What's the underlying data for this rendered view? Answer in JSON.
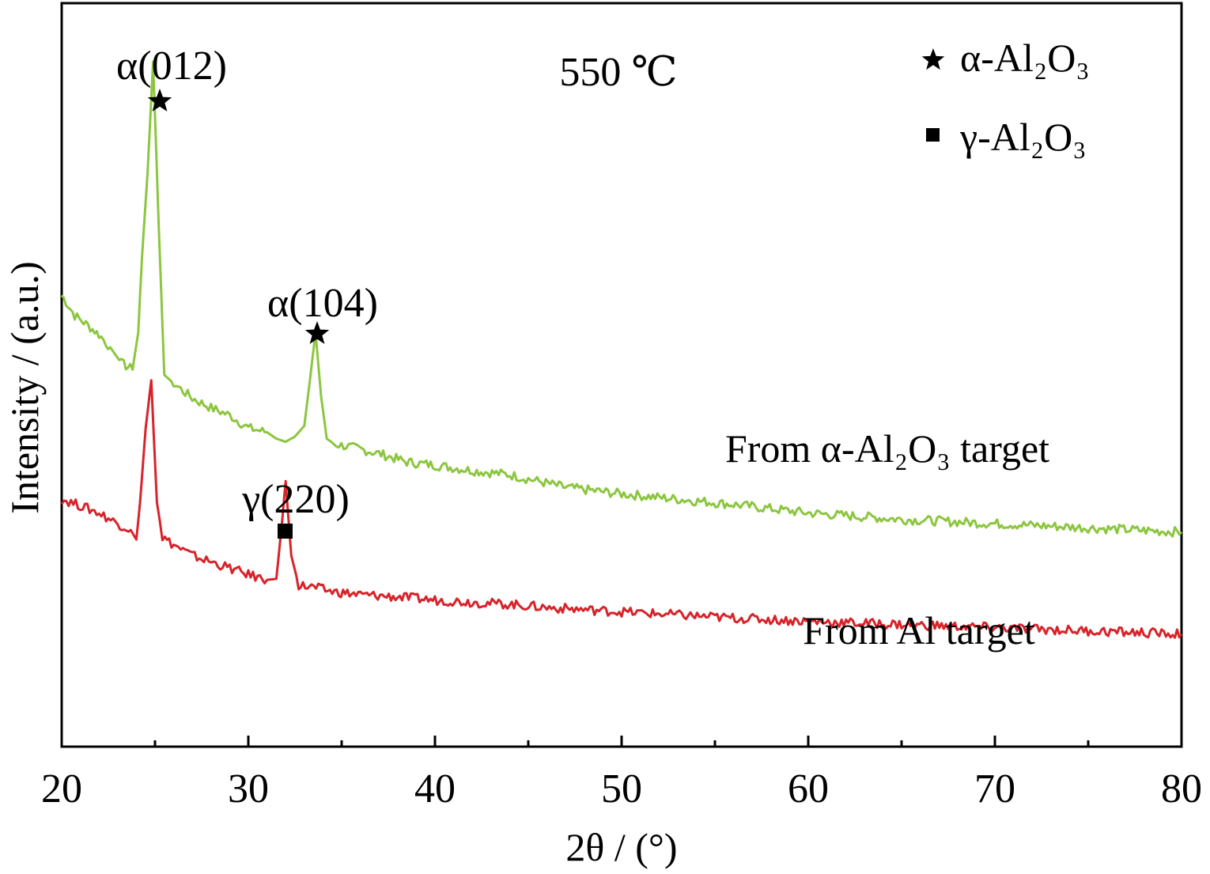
{
  "chart_data": {
    "type": "line",
    "xlabel": "2θ / (°)",
    "ylabel": "Intensity / (a.u.)",
    "xlim": [
      20,
      80
    ],
    "xticks": [
      20,
      30,
      40,
      50,
      60,
      70,
      80
    ],
    "y_ticks_shown": false,
    "annotation_temperature": "550 ℃",
    "legend": {
      "placement": "top-right",
      "entries": [
        {
          "marker": "star",
          "label": "α-Al₂O₃"
        },
        {
          "marker": "square",
          "label": "γ-Al₂O₃"
        }
      ]
    },
    "series": [
      {
        "name": "From α-Al₂O₃ target",
        "color": "#8cc63f",
        "x": [
          20.0,
          20.7,
          21.3,
          22.0,
          22.6,
          23.2,
          23.8,
          24.1,
          24.3,
          24.6,
          24.9,
          25.2,
          25.5,
          26.0,
          27.0,
          28.0,
          29.0,
          30.0,
          31.0,
          31.5,
          32.0,
          32.5,
          33.0,
          33.3,
          33.6,
          33.9,
          34.2,
          34.6,
          35.5,
          37.0,
          38.5,
          40.0,
          42.0,
          44.0,
          45.0,
          47.0,
          50.0,
          53.0,
          56.0,
          60.0,
          65.0,
          70.0,
          75.0,
          80.0
        ],
        "y": [
          4.25,
          4.06,
          3.98,
          3.88,
          3.76,
          3.61,
          3.55,
          3.9,
          4.6,
          5.4,
          6.45,
          4.9,
          3.5,
          3.42,
          3.28,
          3.19,
          3.12,
          3.0,
          2.96,
          2.9,
          2.87,
          2.92,
          3.02,
          3.45,
          3.9,
          3.3,
          2.9,
          2.85,
          2.82,
          2.76,
          2.68,
          2.65,
          2.6,
          2.56,
          2.52,
          2.44,
          2.38,
          2.33,
          2.28,
          2.2,
          2.14,
          2.1,
          2.06,
          2.02
        ]
      },
      {
        "name": "From Al target",
        "color": "#d8232a",
        "x": [
          20.0,
          21.0,
          22.0,
          23.0,
          23.7,
          24.0,
          24.2,
          24.5,
          24.8,
          25.1,
          25.4,
          26.0,
          27.0,
          28.0,
          29.0,
          30.0,
          31.0,
          31.5,
          31.8,
          32.0,
          32.3,
          32.7,
          33.5,
          34.5,
          36.0,
          38.0,
          40.0,
          42.0,
          44.0,
          46.0,
          50.0,
          55.0,
          60.0,
          65.0,
          70.0,
          75.0,
          80.0
        ],
        "y": [
          2.33,
          2.27,
          2.2,
          2.1,
          2.04,
          1.95,
          2.3,
          3.0,
          3.45,
          2.3,
          1.97,
          1.9,
          1.8,
          1.74,
          1.68,
          1.62,
          1.57,
          1.58,
          2.1,
          2.5,
          1.8,
          1.52,
          1.5,
          1.46,
          1.43,
          1.41,
          1.38,
          1.36,
          1.34,
          1.31,
          1.27,
          1.22,
          1.18,
          1.15,
          1.12,
          1.09,
          1.06
        ]
      }
    ],
    "peak_annotations": [
      {
        "label": "α(012)",
        "x": 25.2,
        "marker": "star",
        "series": "From α-Al₂O₃ target"
      },
      {
        "label": "α(104)",
        "x": 33.6,
        "marker": "star",
        "series": "From α-Al₂O₃ target"
      },
      {
        "label": "γ(220)",
        "x": 32.0,
        "marker": "square",
        "series": "From Al target"
      }
    ]
  }
}
